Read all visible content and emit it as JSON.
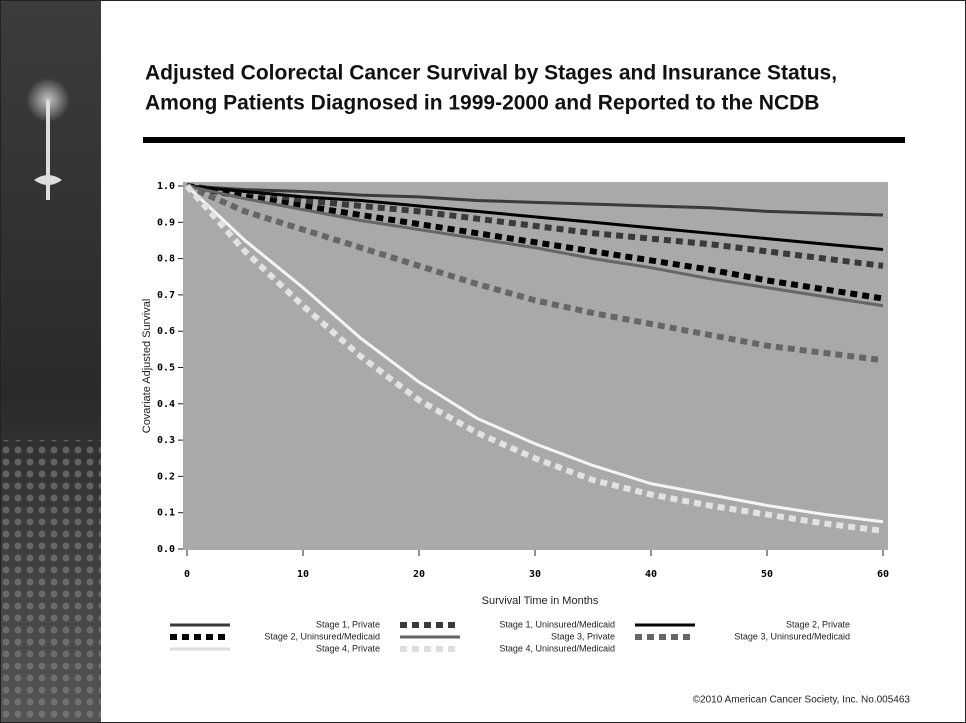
{
  "chart_data": {
    "type": "line",
    "title": [
      "Adjusted Colorectal Cancer Survival by Stages and Insurance Status,",
      "Among Patients Diagnosed in 1999-2000 and Reported to the NCDB"
    ],
    "x_label": "Survival Time in Months",
    "y_label": "Covariate Adjusted Survival",
    "footer": "©2010 American Cancer Society, Inc. No.005463",
    "x": [
      0,
      5,
      10,
      15,
      20,
      25,
      30,
      35,
      40,
      45,
      50,
      55,
      60
    ],
    "xlim": [
      0,
      60
    ],
    "xticks": [
      0,
      10,
      20,
      30,
      40,
      50,
      60
    ],
    "ylim": [
      0,
      1
    ],
    "yticks": [
      {
        "value": 0,
        "label": "0.0"
      },
      0.1,
      0.2,
      0.3,
      0.4,
      0.5,
      0.6,
      0.7,
      0.8,
      0.9,
      {
        "value": 1,
        "label": "1.0"
      }
    ],
    "series": [
      {
        "name": "Stage 1, Private",
        "color": "#3a3a3a",
        "style": "solid",
        "values": [
          1,
          0.99,
          0.985,
          0.975,
          0.97,
          0.96,
          0.955,
          0.95,
          0.945,
          0.94,
          0.93,
          0.925,
          0.92
        ]
      },
      {
        "name": "Stage 1, Uninsured/Medicaid",
        "color": "#3a3a3a",
        "style": "dashed",
        "values": [
          1,
          0.98,
          0.96,
          0.945,
          0.93,
          0.91,
          0.89,
          0.87,
          0.855,
          0.84,
          0.82,
          0.8,
          0.78
        ]
      },
      {
        "name": "Stage 2, Private",
        "color": "#000000",
        "style": "solid",
        "values": [
          1,
          0.985,
          0.97,
          0.96,
          0.945,
          0.93,
          0.915,
          0.9,
          0.885,
          0.87,
          0.855,
          0.84,
          0.825
        ]
      },
      {
        "name": "Stage 2, Uninsured/Medicaid",
        "color": "#000000",
        "style": "dashed",
        "values": [
          1,
          0.97,
          0.945,
          0.92,
          0.895,
          0.87,
          0.845,
          0.82,
          0.795,
          0.77,
          0.74,
          0.715,
          0.69
        ]
      },
      {
        "name": "Stage 3, Private",
        "color": "#666666",
        "style": "solid",
        "values": [
          1,
          0.965,
          0.935,
          0.905,
          0.88,
          0.855,
          0.83,
          0.8,
          0.775,
          0.745,
          0.72,
          0.695,
          0.67
        ]
      },
      {
        "name": "Stage 3, Uninsured/Medicaid",
        "color": "#666666",
        "style": "dashed",
        "values": [
          1,
          0.93,
          0.88,
          0.83,
          0.78,
          0.73,
          0.685,
          0.65,
          0.62,
          0.59,
          0.56,
          0.54,
          0.52
        ]
      },
      {
        "name": "Stage 4, Private",
        "color": "#f4f4f4",
        "style": "solid",
        "values": [
          1,
          0.85,
          0.72,
          0.58,
          0.46,
          0.36,
          0.29,
          0.23,
          0.18,
          0.15,
          0.12,
          0.095,
          0.075
        ]
      },
      {
        "name": "Stage 4, Uninsured/Medicaid",
        "color": "#e2e2e2",
        "style": "dashed",
        "values": [
          1,
          0.82,
          0.67,
          0.53,
          0.41,
          0.32,
          0.25,
          0.19,
          0.15,
          0.12,
          0.095,
          0.07,
          0.05
        ]
      }
    ]
  }
}
